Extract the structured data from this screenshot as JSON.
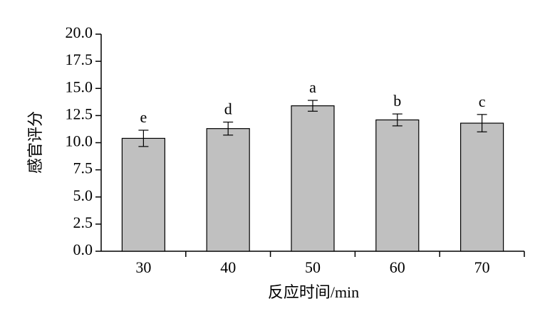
{
  "chart_data": {
    "type": "bar",
    "x_label": "反应时间/min",
    "y_label": "感官评分",
    "categories": [
      "30",
      "40",
      "50",
      "60",
      "70"
    ],
    "values": [
      10.4,
      11.3,
      13.4,
      12.1,
      11.8
    ],
    "errors": [
      0.75,
      0.6,
      0.5,
      0.55,
      0.8
    ],
    "significance_labels": [
      "e",
      "d",
      "a",
      "b",
      "c"
    ],
    "color": "#c0c0c0",
    "ylim": [
      0,
      20
    ],
    "yticks": [
      {
        "value": 0,
        "label": "0.0"
      },
      2.5,
      {
        "value": 5,
        "label": "5.0"
      },
      7.5,
      {
        "value": 10,
        "label": "10.0"
      },
      12.5,
      {
        "value": 15,
        "label": "15.0"
      },
      17.5,
      {
        "value": 20,
        "label": "20.0"
      }
    ]
  }
}
